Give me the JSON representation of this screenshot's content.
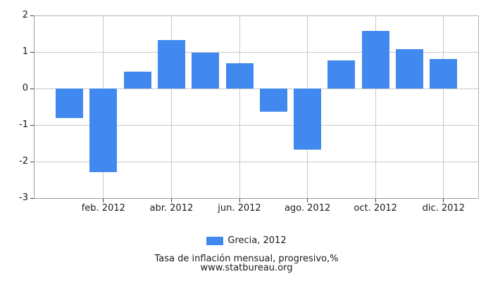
{
  "chart_data": {
    "type": "bar",
    "title": "Tasa de inflación mensual, progresivo,%",
    "source_url": "www.statbureau.org",
    "legend_position": "bottom",
    "grid": true,
    "ylim": [
      -3,
      2
    ],
    "y_ticks": [
      2,
      1,
      0,
      -1,
      -2,
      -3
    ],
    "x_tick_labels": [
      "feb. 2012",
      "abr. 2012",
      "jun. 2012",
      "ago. 2012",
      "oct. 2012",
      "dic. 2012"
    ],
    "x_tick_month_indexes": [
      1,
      3,
      5,
      7,
      9,
      11
    ],
    "series": [
      {
        "name": "Grecia, 2012",
        "values": [
          -0.81,
          -2.29,
          0.46,
          1.32,
          0.99,
          0.69,
          -0.64,
          -1.68,
          0.76,
          1.58,
          1.07,
          0.81
        ],
        "color": "#4189ee"
      }
    ],
    "colors": {
      "bar": "#4189ee",
      "grid": "#c9c9c9",
      "axis": "#9b9b9b",
      "frame": "#b3b3b3",
      "tick": "#3a3a3a",
      "text": "#1a1a1a"
    }
  }
}
